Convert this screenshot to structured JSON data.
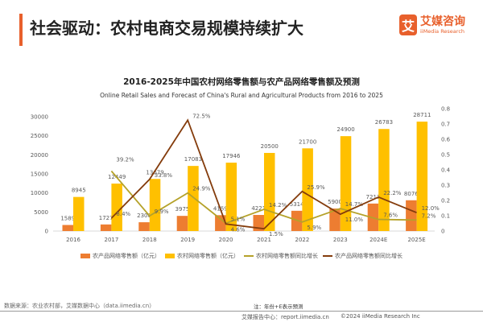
{
  "header": {
    "title": "社会驱动：农村电商交易规模持续扩大"
  },
  "logo": {
    "mark": "艾",
    "cn": "艾媒咨询",
    "en": "iiMedia Research"
  },
  "colors": {
    "accent": "#e8602c",
    "agri_bar": "#ed7d31",
    "rural_bar": "#ffc000",
    "rural_line": "#b5a22a",
    "agri_line": "#843c0c"
  },
  "chart_data": {
    "type": "bar",
    "title": "2016-2025年中国农村网络零售额与农产品网络零售额及预测",
    "subtitle": "Online Retail Sales and Forecast of China's Rural and Agricultural Products from 2016 to 2025",
    "categories": [
      "2016",
      "2017",
      "2018",
      "2019",
      "2020",
      "2021",
      "2022",
      "2023",
      "2024E",
      "2025E"
    ],
    "y_left": {
      "range": [
        0,
        30000
      ],
      "ticks": [
        "0",
        "5000",
        "10000",
        "15000",
        "20000",
        "25000",
        "30000"
      ]
    },
    "y_right": {
      "range": [
        0,
        0.8
      ],
      "ticks": [
        "0",
        "0.1",
        "0.2",
        "0.3",
        "0.4",
        "0.5",
        "0.6",
        "0.7",
        "0.8"
      ]
    },
    "series": [
      {
        "name": "农产品网络零售额（亿元）",
        "type": "bar",
        "axis": "left",
        "values": [
          1589,
          1727,
          2306,
          3975,
          4159,
          4221,
          5314,
          5900,
          7211,
          8076
        ]
      },
      {
        "name": "农村网络零售额（亿元）",
        "type": "bar",
        "axis": "left",
        "values": [
          8945,
          12449,
          13679,
          17083,
          17946,
          20500,
          21700,
          24900,
          26783,
          28711
        ]
      },
      {
        "name": "农村网络零售额同比增长",
        "type": "line",
        "axis": "right",
        "values": [
          null,
          0.392,
          0.099,
          0.249,
          0.051,
          0.142,
          0.059,
          0.147,
          0.076,
          0.072
        ],
        "labels": [
          "",
          "39.2%",
          "9.9%",
          "24.9%",
          "5.1%",
          "14.2%",
          "5.9%",
          "14.7%",
          "7.6%",
          "7.2%"
        ]
      },
      {
        "name": "农产品网络零售额同比增长",
        "type": "line",
        "axis": "right",
        "values": [
          null,
          0.084,
          0.338,
          0.725,
          0.046,
          0.015,
          0.259,
          0.11,
          0.222,
          0.12
        ],
        "labels": [
          "",
          "8.4%",
          "33.8%",
          "72.5%",
          "4.6%",
          "1.5%",
          "25.9%",
          "11.0%",
          "22.2%",
          "12.0%"
        ]
      }
    ],
    "legend": "bottom",
    "grid": false
  },
  "footer": {
    "source": "数据来源：农业农村部，艾媒数据中心（data.iimedia.cn）",
    "note": "注：年份+E表示预测",
    "report": "艾媒报告中心：report.iimedia.cn",
    "copyright": "©2024  iiMedia Research  Inc"
  }
}
